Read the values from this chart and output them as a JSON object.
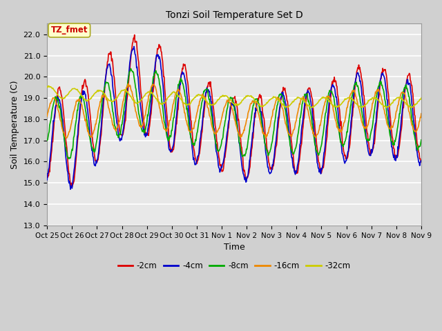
{
  "title": "Tonzi Soil Temperature Set D",
  "xlabel": "Time",
  "ylabel": "Soil Temperature (C)",
  "annotation": "TZ_fmet",
  "ylim": [
    13.0,
    22.5
  ],
  "yticks": [
    13.0,
    14.0,
    15.0,
    16.0,
    17.0,
    18.0,
    19.0,
    20.0,
    21.0,
    22.0
  ],
  "xtick_labels": [
    "Oct 25",
    "Oct 26",
    "Oct 27",
    "Oct 28",
    "Oct 29",
    "Oct 30",
    "Oct 31",
    "Nov 1",
    "Nov 2",
    "Nov 3",
    "Nov 4",
    "Nov 5",
    "Nov 6",
    "Nov 7",
    "Nov 8",
    "Nov 9"
  ],
  "series_colors": [
    "#dd0000",
    "#0000cc",
    "#00aa00",
    "#ee8800",
    "#cccc00"
  ],
  "series_labels": [
    "-2cm",
    "-4cm",
    "-8cm",
    "-16cm",
    "-32cm"
  ],
  "line_width": 1.2,
  "fig_bg_color": "#d0d0d0",
  "plot_bg_color": "#e8e8e8",
  "grid_color": "#ffffff"
}
